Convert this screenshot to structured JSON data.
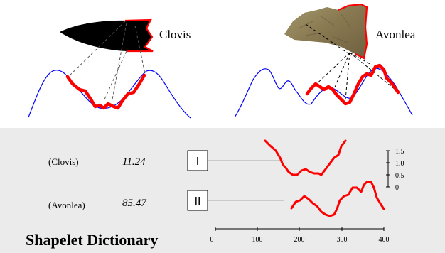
{
  "top": {
    "left_label": "Clovis",
    "right_label": "Avonlea"
  },
  "dictionary": {
    "title": "Shapelet Dictionary",
    "rows": [
      {
        "name": "(Clovis)",
        "value": "11.24",
        "index": "I"
      },
      {
        "name": "(Avonlea)",
        "value": "85.47",
        "index": "II"
      }
    ],
    "x_ticks": [
      "0",
      "100",
      "200",
      "300",
      "400"
    ],
    "y_ticks": [
      "1.5",
      "1.0",
      "0.5",
      "0"
    ]
  },
  "colors": {
    "contour": "#0000ff",
    "shapelet": "#ff0000",
    "panel_bg": "#ebebeb",
    "point_fill": "#000000"
  }
}
